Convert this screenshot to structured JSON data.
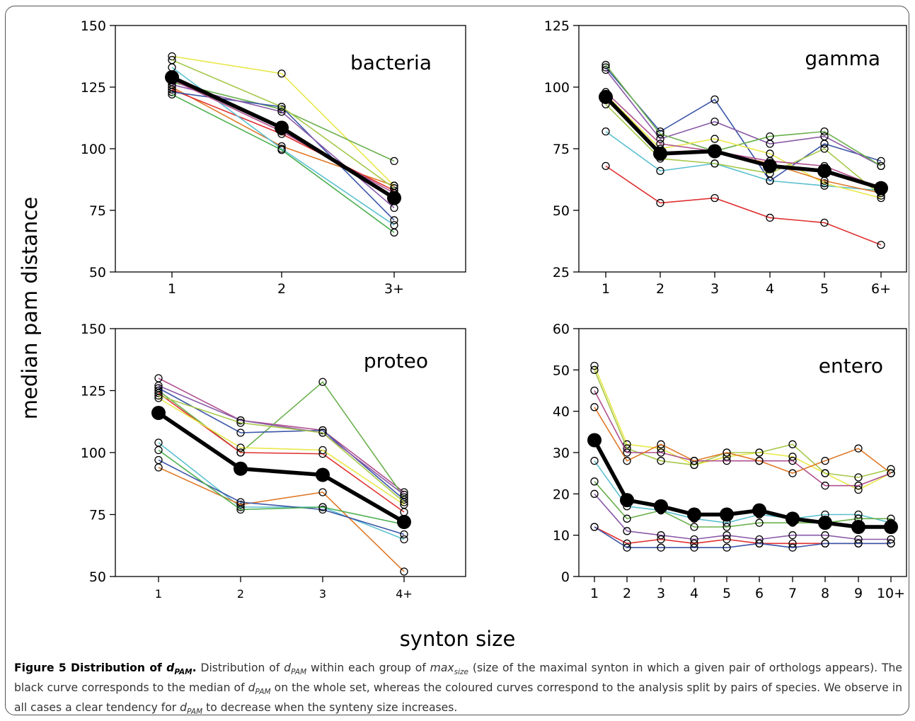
{
  "figure": {
    "y_axis_label": "median pam distance",
    "x_axis_label": "synton size",
    "caption": {
      "title_prefix": "Figure 5 Distribution of ",
      "title_var": "d",
      "title_var_sub": "PAM",
      "title_suffix": ".",
      "segments": [
        {
          "t": " Distribution of "
        },
        {
          "v": "d",
          "s": "PAM"
        },
        {
          "t": " within each group of "
        },
        {
          "v": "max",
          "s": "size"
        },
        {
          "t": " (size of the maximal synton in which a given pair of orthologs appears). The black curve corresponds to the median of "
        },
        {
          "v": "d",
          "s": "PAM"
        },
        {
          "t": " on the whole set, whereas the coloured curves correspond to the analysis split by pairs of species. We observe in all cases a clear tendency for "
        },
        {
          "v": "d",
          "s": "PAM"
        },
        {
          "t": " to decrease when the synteny size increases."
        }
      ]
    }
  },
  "chart_data": [
    {
      "type": "line",
      "title": "bacteria",
      "categories": [
        "1",
        "2",
        "3+"
      ],
      "ylim": [
        50,
        150
      ],
      "yticks": [
        50,
        75,
        100,
        125,
        150
      ],
      "median": [
        129,
        108.5,
        80
      ],
      "series": [
        {
          "color": "#e8e84a",
          "values": [
            137.5,
            130.5,
            85
          ]
        },
        {
          "color": "#6ab04c",
          "values": [
            127,
            116,
            95
          ]
        },
        {
          "color": "#e07a2a",
          "values": [
            125,
            101,
            85
          ]
        },
        {
          "color": "#e03030",
          "values": [
            124,
            106,
            83
          ]
        },
        {
          "color": "#3b55a8",
          "values": [
            123,
            117,
            71
          ]
        },
        {
          "color": "#5bc0d0",
          "values": [
            133,
            100,
            69
          ]
        },
        {
          "color": "#8a5aa8",
          "values": [
            126,
            115,
            76
          ]
        },
        {
          "color": "#4caf50",
          "values": [
            122,
            99.5,
            66
          ]
        },
        {
          "color": "#a6c84a",
          "values": [
            136,
            117,
            84
          ]
        },
        {
          "color": "#b05090",
          "values": [
            128,
            107,
            82
          ]
        }
      ]
    },
    {
      "type": "line",
      "title": "gamma",
      "categories": [
        "1",
        "2",
        "3",
        "4",
        "5",
        "6+"
      ],
      "ylim": [
        25,
        125
      ],
      "yticks": [
        25,
        50,
        75,
        100,
        125
      ],
      "median": [
        96,
        73,
        74,
        68,
        66,
        59
      ],
      "series": [
        {
          "color": "#e03030",
          "values": [
            68,
            53,
            55,
            47,
            45,
            36
          ]
        },
        {
          "color": "#5bc0d0",
          "values": [
            82,
            66,
            69,
            62,
            60,
            58
          ]
        },
        {
          "color": "#3b55a8",
          "values": [
            108,
            82,
            95,
            62,
            77,
            70
          ]
        },
        {
          "color": "#8a5aa8",
          "values": [
            107,
            79,
            86,
            77,
            80,
            68
          ]
        },
        {
          "color": "#6ab04c",
          "values": [
            109,
            81,
            74,
            80,
            82,
            68
          ]
        },
        {
          "color": "#e8e84a",
          "values": [
            97,
            75,
            79,
            73,
            61,
            55
          ]
        },
        {
          "color": "#a6c84a",
          "values": [
            93,
            71,
            69,
            65,
            75,
            56
          ]
        },
        {
          "color": "#e07a2a",
          "values": [
            95,
            73,
            74,
            69,
            62,
            57
          ]
        },
        {
          "color": "#b05090",
          "values": [
            98,
            77,
            74,
            70,
            68,
            59
          ]
        }
      ]
    },
    {
      "type": "line",
      "title": "proteo",
      "categories": [
        "1",
        "2",
        "3",
        "4+"
      ],
      "ylim": [
        50,
        150
      ],
      "yticks": [
        50,
        75,
        100,
        125,
        150
      ],
      "median": [
        116,
        93.5,
        91,
        72
      ],
      "series": [
        {
          "color": "#b05090",
          "values": [
            130,
            113,
            109,
            84
          ]
        },
        {
          "color": "#6ab04c",
          "values": [
            125,
            100,
            128.5,
            82
          ]
        },
        {
          "color": "#3b55a8",
          "values": [
            126,
            108,
            109,
            81
          ]
        },
        {
          "color": "#e03030",
          "values": [
            124,
            100,
            99.5,
            76
          ]
        },
        {
          "color": "#e8e84a",
          "values": [
            122,
            102,
            101,
            79
          ]
        },
        {
          "color": "#8a5aa8",
          "values": [
            127,
            113,
            108,
            83
          ]
        },
        {
          "color": "#a6c84a",
          "values": [
            123,
            112,
            108,
            80
          ]
        },
        {
          "color": "#5bc0d0",
          "values": [
            104,
            78,
            78,
            65
          ]
        },
        {
          "color": "#e07a2a",
          "values": [
            94,
            79,
            84,
            52
          ]
        },
        {
          "color": "#3b55a8",
          "values": [
            97,
            80,
            77,
            67
          ]
        },
        {
          "color": "#4caf50",
          "values": [
            101,
            77,
            78,
            71
          ]
        }
      ]
    },
    {
      "type": "line",
      "title": "entero",
      "categories": [
        "1",
        "2",
        "3",
        "4",
        "5",
        "6",
        "7",
        "8",
        "9",
        "10+"
      ],
      "ylim": [
        0,
        60
      ],
      "yticks": [
        0,
        10,
        20,
        30,
        40,
        50,
        60
      ],
      "median": [
        33,
        18.5,
        17,
        15,
        15,
        16,
        14,
        13,
        12,
        12
      ],
      "series": [
        {
          "color": "#e8e84a",
          "values": [
            51,
            32,
            31,
            27,
            29,
            30,
            29,
            25,
            21,
            25
          ]
        },
        {
          "color": "#a6c84a",
          "values": [
            50,
            31,
            28,
            27,
            30,
            30,
            32,
            25,
            24,
            26
          ]
        },
        {
          "color": "#b05090",
          "values": [
            45,
            30,
            30,
            28,
            28,
            28,
            28,
            22,
            22,
            25
          ]
        },
        {
          "color": "#e07a2a",
          "values": [
            41,
            28,
            32,
            28,
            30,
            28,
            25,
            28,
            31,
            25
          ]
        },
        {
          "color": "#5bc0d0",
          "values": [
            28,
            17,
            16,
            14,
            13,
            15,
            14,
            15,
            15,
            13
          ]
        },
        {
          "color": "#6ab04c",
          "values": [
            23,
            14,
            16,
            12,
            12,
            13,
            13,
            13,
            14,
            14
          ]
        },
        {
          "color": "#8a5aa8",
          "values": [
            20,
            11,
            10,
            9,
            10,
            9,
            10,
            10,
            9,
            9
          ]
        },
        {
          "color": "#e03030",
          "values": [
            12,
            8,
            9,
            8,
            9,
            8,
            8,
            8,
            8,
            8
          ]
        },
        {
          "color": "#3b55a8",
          "values": [
            12,
            7,
            7,
            7,
            7,
            8,
            7,
            8,
            8,
            8
          ]
        }
      ]
    }
  ]
}
